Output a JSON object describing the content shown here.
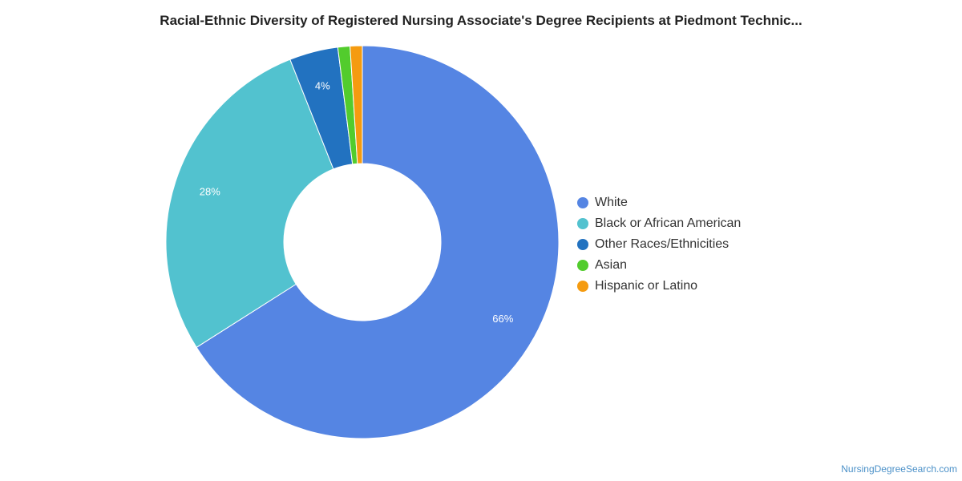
{
  "title": "Racial-Ethnic Diversity of Registered Nursing Associate's Degree Recipients at Piedmont Technic...",
  "watermark": "NursingDegreeSearch.com",
  "chart_data": {
    "type": "pie",
    "donut": true,
    "legend_position": "right",
    "slices": [
      {
        "name": "White",
        "value": 66,
        "label": "66%",
        "color": "#5585e3"
      },
      {
        "name": "Black or African American",
        "value": 28,
        "label": "28%",
        "color": "#52c2cf"
      },
      {
        "name": "Other Races/Ethnicities",
        "value": 4,
        "label": "4%",
        "color": "#2272c0"
      },
      {
        "name": "Asian",
        "value": 1,
        "label": "",
        "color": "#52cc2d"
      },
      {
        "name": "Hispanic or Latino",
        "value": 1,
        "label": "",
        "color": "#f59b10"
      }
    ]
  }
}
